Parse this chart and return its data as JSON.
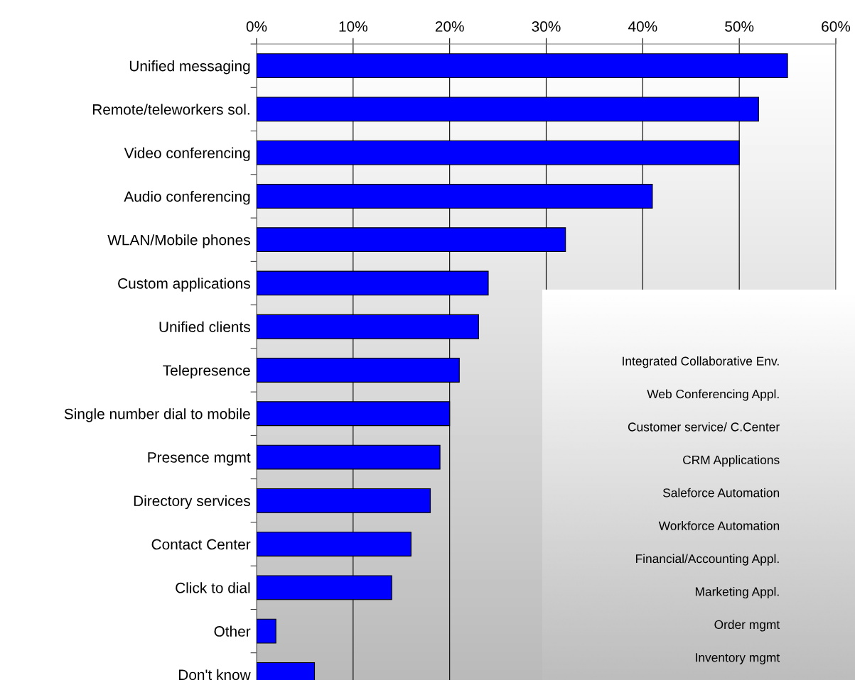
{
  "chart_data": [
    {
      "type": "bar",
      "orientation": "horizontal",
      "categories": [
        "Unified messaging",
        "Remote/teleworkers sol.",
        "Video conferencing",
        "Audio conferencing",
        "WLAN/Mobile phones",
        "Custom applications",
        "Unified clients",
        "Telepresence",
        "Single number dial to mobile",
        "Presence mgmt",
        "Directory services",
        "Contact Center",
        "Click to dial",
        "Other",
        "Don't know"
      ],
      "values": [
        0.55,
        0.52,
        0.5,
        0.41,
        0.32,
        0.24,
        0.23,
        0.21,
        0.2,
        0.19,
        0.18,
        0.16,
        0.14,
        0.02,
        0.06
      ],
      "color": "#0000ff",
      "xlim": [
        0,
        0.6
      ],
      "xticks": [
        {
          "value": 0,
          "label": "0%"
        },
        {
          "value": 0.1,
          "label": "10%"
        },
        {
          "value": 0.2,
          "label": "20%"
        },
        {
          "value": 0.3,
          "label": "30%"
        },
        {
          "value": 0.4,
          "label": "40%"
        },
        {
          "value": 0.5,
          "label": "50%"
        },
        {
          "value": 0.6,
          "label": "60%"
        }
      ],
      "grid": "x",
      "legend": false
    },
    {
      "type": "other",
      "annotations": [
        "Integrated Collaborative Env.",
        "Web Conferencing Appl.",
        "Customer service/ C.Center",
        "CRM Applications",
        "Saleforce Automation",
        "Workforce Automation",
        "Financial/Accounting Appl.",
        "Marketing Appl.",
        "Order mgmt",
        "Inventory mgmt"
      ]
    }
  ]
}
